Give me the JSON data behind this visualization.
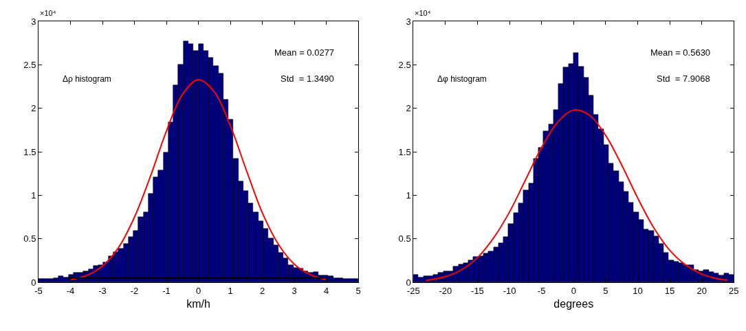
{
  "chart_data": [
    {
      "type": "histogram",
      "xlabel": "km/h",
      "color": "#00007f",
      "bins": [
        -5,
        -4.84375,
        -4.6875,
        -4.53125,
        -4.375,
        -4.21875,
        -4.0625,
        -3.90625,
        -3.75,
        -3.59375,
        -3.4375,
        -3.28125,
        -3.125,
        -2.96875,
        -2.8125,
        -2.65625,
        -2.5,
        -2.34375,
        -2.1875,
        -2.03125,
        -1.875,
        -1.71875,
        -1.5625,
        -1.40625,
        -1.25,
        -1.09375,
        -0.9375,
        -0.78125,
        -0.625,
        -0.46875,
        -0.3125,
        -0.15625,
        0,
        0.15625,
        0.3125,
        0.46875,
        0.625,
        0.78125,
        0.9375,
        1.09375,
        1.25,
        1.40625,
        1.5625,
        1.71875,
        1.875,
        2.03125,
        2.1875,
        2.34375,
        2.5,
        2.65625,
        2.8125,
        2.96875,
        3.125,
        3.28125,
        3.4375,
        3.59375,
        3.75,
        3.90625,
        4.0625,
        4.21875,
        4.375,
        4.53125,
        4.6875,
        4.84375,
        5
      ],
      "values": [
        0.04,
        0.04,
        0.04,
        0.05,
        0.07,
        0.06,
        0.09,
        0.11,
        0.11,
        0.13,
        0.15,
        0.19,
        0.2,
        0.23,
        0.3,
        0.35,
        0.39,
        0.44,
        0.52,
        0.59,
        0.75,
        0.81,
        1.02,
        1.21,
        1.29,
        1.49,
        1.84,
        2.27,
        2.5,
        2.77,
        2.74,
        2.66,
        2.74,
        2.66,
        2.58,
        2.49,
        2.4,
        2.1,
        1.87,
        1.42,
        1.16,
        1.05,
        0.91,
        0.81,
        0.7,
        0.62,
        0.51,
        0.43,
        0.34,
        0.28,
        0.2,
        0.17,
        0.16,
        0.13,
        0.11,
        0.12,
        0.08,
        0.08,
        0.07,
        0.05,
        0.05,
        0.04,
        0.04,
        0.04
      ],
      "series": [
        {
          "type": "line",
          "color": "#ff0000",
          "x": [
            -4,
            -3.5,
            -3,
            -2.5,
            -2,
            -1.5,
            -1,
            -0.5,
            0,
            0.5,
            1,
            1.5,
            2,
            2.5,
            3,
            3.5,
            4
          ],
          "values": [
            0.03,
            0.08,
            0.19,
            0.4,
            0.75,
            1.22,
            1.74,
            2.16,
            2.33,
            2.19,
            1.8,
            1.29,
            0.8,
            0.44,
            0.21,
            0.09,
            0.03
          ]
        },
        {
          "type": "line",
          "color": "#000000",
          "x": [
            -4.1,
            3.9
          ],
          "values": [
            0.05,
            0.05
          ]
        }
      ],
      "xlim": [
        -5,
        5
      ],
      "xticks": [
        -5,
        -4,
        -3,
        -2,
        -1,
        0,
        1,
        2,
        3,
        4,
        5
      ],
      "ylim": [
        0,
        3
      ],
      "yticks": [
        0,
        0.5,
        1,
        1.5,
        2,
        2.5,
        3
      ],
      "annotations": [
        "×10⁴",
        "Δρ histogram",
        "Mean = 0.0277",
        "Std  = 1.3490"
      ]
    },
    {
      "type": "histogram",
      "xlabel": "degrees",
      "color": "#00007f",
      "bins": [
        -25,
        -24.21875,
        -23.4375,
        -22.65625,
        -21.875,
        -21.09375,
        -20.3125,
        -19.53125,
        -18.75,
        -17.96875,
        -17.1875,
        -16.40625,
        -15.625,
        -14.84375,
        -14.0625,
        -13.28125,
        -12.5,
        -11.71875,
        -10.9375,
        -10.15625,
        -9.375,
        -8.59375,
        -7.8125,
        -7.03125,
        -6.25,
        -5.46875,
        -4.6875,
        -3.90625,
        -3.125,
        -2.34375,
        -1.5625,
        -0.78125,
        0,
        0.78125,
        1.5625,
        2.34375,
        3.125,
        3.90625,
        4.6875,
        5.46875,
        6.25,
        7.03125,
        7.8125,
        8.59375,
        9.375,
        10.15625,
        10.9375,
        11.71875,
        12.5,
        13.28125,
        14.0625,
        14.84375,
        15.625,
        16.40625,
        17.1875,
        17.96875,
        18.75,
        19.53125,
        20.3125,
        21.09375,
        21.875,
        22.65625,
        23.4375,
        24.21875,
        25
      ],
      "values": [
        0.09,
        0.06,
        0.075,
        0.075,
        0.09,
        0.11,
        0.13,
        0.13,
        0.18,
        0.21,
        0.22,
        0.25,
        0.29,
        0.3,
        0.33,
        0.36,
        0.4,
        0.45,
        0.52,
        0.67,
        0.8,
        0.91,
        1.06,
        1.14,
        1.42,
        1.55,
        1.74,
        1.82,
        1.98,
        2.28,
        2.47,
        2.51,
        2.64,
        2.48,
        2.35,
        2.15,
        1.93,
        1.76,
        1.58,
        1.37,
        1.28,
        1.15,
        1.04,
        0.92,
        0.81,
        0.72,
        0.61,
        0.59,
        0.53,
        0.44,
        0.34,
        0.25,
        0.24,
        0.22,
        0.2,
        0.2,
        0.14,
        0.13,
        0.14,
        0.12,
        0.1,
        0.08,
        0.1,
        0.09
      ],
      "series": [
        {
          "type": "line",
          "color": "#ff0000",
          "x": [
            -23,
            -20,
            -17.5,
            -15,
            -12.5,
            -10,
            -7.5,
            -5,
            -2.5,
            0,
            2.5,
            5,
            7.5,
            10,
            12.5,
            15,
            17.5,
            20,
            22.5,
            24
          ],
          "values": [
            0.023,
            0.067,
            0.146,
            0.285,
            0.51,
            0.81,
            1.18,
            1.55,
            1.84,
            1.98,
            1.92,
            1.69,
            1.35,
            0.97,
            0.63,
            0.37,
            0.2,
            0.096,
            0.042,
            0.025
          ]
        }
      ],
      "xlim": [
        -25,
        25
      ],
      "xticks": [
        -25,
        -20,
        -15,
        -10,
        -5,
        0,
        5,
        10,
        15,
        20,
        25
      ],
      "ylim": [
        0,
        3
      ],
      "yticks": [
        0,
        0.5,
        1,
        1.5,
        2,
        2.5,
        3
      ],
      "annotations": [
        "×10⁴",
        "Δφ histogram",
        "Mean = 0.5630",
        "Std  = 7.9068"
      ]
    }
  ]
}
